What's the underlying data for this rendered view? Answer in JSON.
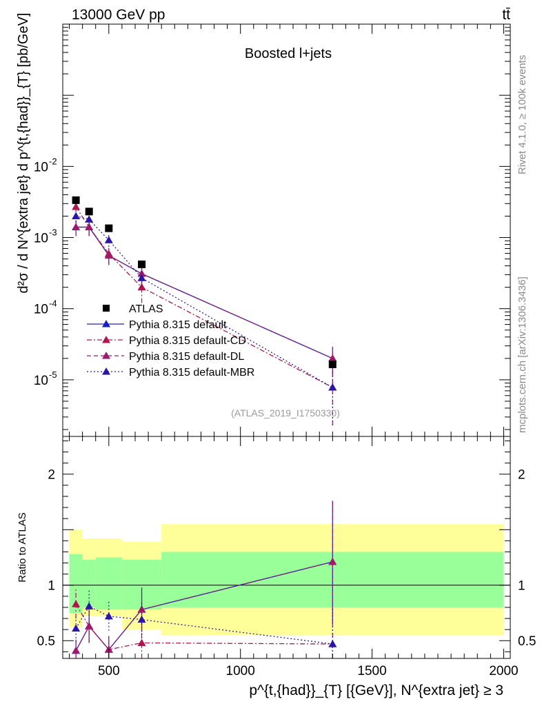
{
  "header": {
    "energy_label": "13000 GeV pp",
    "process_label": "tt̄",
    "side_rivet": "Rivet 4.1.0, ≥ 100k events",
    "side_mcplots": "mcplots.cern.ch [arXiv:1306.3436]"
  },
  "chart_data": [
    {
      "type": "line",
      "panel": "main",
      "title": "Boosted l+jets",
      "analysis_label": "(ATLAS_2019_I1750330)",
      "xlabel": "p^{t,{had}}_{T} [{GeV}], N^{extra jet} ≥ 3",
      "ylabel": "d²σ / d N^{extra jet} d p^{t,{had}}_{T} [pb/GeV]",
      "yscale": "log",
      "xlim": [
        325,
        2025
      ],
      "ylim": [
        1.6e-06,
        1.0
      ],
      "x_ticks": [
        500,
        1000,
        1500,
        2000
      ],
      "y_ticks": [
        {
          "value": 1e-05,
          "label": "10^-5"
        },
        {
          "value": 0.0001,
          "label": "10^-4"
        },
        {
          "value": 0.001,
          "label": "10^-3"
        },
        {
          "value": 0.01,
          "label": "10^-2"
        }
      ],
      "legend_position": "lower-left",
      "data": {
        "name": "ATLAS",
        "x": [
          375,
          425,
          500,
          625,
          1350
        ],
        "y": [
          0.00335,
          0.00232,
          0.00135,
          0.00042,
          1.65e-05
        ]
      },
      "series": [
        {
          "name": "Pythia 8.315 default",
          "color": "#1c1cc6",
          "dash": "solid",
          "x": [
            375,
            425,
            500,
            625,
            1350
          ],
          "y": [
            0.0014,
            0.0014,
            0.00056,
            0.00031,
            2e-05
          ],
          "err": [
            0.00035,
            0.00035,
            0.00015,
            9e-05,
            9e-06
          ]
        },
        {
          "name": "Pythia 8.315 default-CD",
          "color": "#b0164e",
          "dash": "dashdot",
          "x": [
            375,
            425,
            500,
            625,
            1350
          ],
          "y": [
            0.0027,
            0.0014,
            0.00059,
            0.0002,
            7.8e-06
          ],
          "err": [
            0.0004,
            0.00035,
            0.00016,
            8e-05,
            5.5e-06
          ]
        },
        {
          "name": "Pythia 8.315 default-DL",
          "color": "#a0196a",
          "dash": "dashed",
          "x": [
            375,
            425,
            500,
            625,
            1350
          ],
          "y": [
            0.0014,
            0.0014,
            0.00056,
            0.00031,
            2e-05
          ],
          "err": [
            0.00035,
            0.00035,
            0.00015,
            9e-05,
            9e-06
          ]
        },
        {
          "name": "Pythia 8.315 default-MBR",
          "color": "#2a16a8",
          "dash": "dotted",
          "x": [
            375,
            425,
            500,
            625,
            1350
          ],
          "y": [
            0.002,
            0.0018,
            0.00092,
            0.00027,
            7.8e-06
          ],
          "err": [
            0.00035,
            0.0003,
            0.00018,
            7e-05,
            5.5e-06
          ]
        }
      ]
    },
    {
      "type": "line",
      "panel": "ratio",
      "ylabel": "Ratio to ATLAS",
      "xlabel": "p^{t,{had}}_{T} [{GeV}], N^{extra jet} ≥ 3",
      "xlim": [
        325,
        2025
      ],
      "ylim": [
        0.34,
        2.34
      ],
      "x_ticks": [
        500,
        1000,
        1500,
        2000
      ],
      "y_ticks": [
        0.5,
        1,
        2
      ],
      "reference_line": 1.0,
      "bands": {
        "bins": [
          [
            350,
            400
          ],
          [
            400,
            450
          ],
          [
            450,
            550
          ],
          [
            550,
            700
          ],
          [
            700,
            2000
          ]
        ],
        "inner": [
          [
            0.75,
            1.28
          ],
          [
            0.8,
            1.23
          ],
          [
            0.78,
            1.25
          ],
          [
            0.78,
            1.23
          ],
          [
            0.8,
            1.3
          ]
        ],
        "outer": [
          [
            0.62,
            1.5
          ],
          [
            0.72,
            1.42
          ],
          [
            0.72,
            1.42
          ],
          [
            0.6,
            1.39
          ],
          [
            0.55,
            1.55
          ]
        ],
        "inner_color": "#99ff99",
        "outer_color": "#ffff99"
      },
      "series": [
        {
          "name": "Pythia 8.315 default",
          "color": "#1c1cc6",
          "dash": "solid",
          "x": [
            375,
            425,
            500,
            625,
            1350
          ],
          "y": [
            0.41,
            0.63,
            0.42,
            0.78,
            1.21
          ],
          "err": [
            0.1,
            0.15,
            0.12,
            0.2,
            0.55
          ]
        },
        {
          "name": "Pythia 8.315 default-CD",
          "color": "#b0164e",
          "dash": "dashdot",
          "x": [
            375,
            425,
            500,
            625,
            1350
          ],
          "y": [
            0.83,
            0.63,
            0.42,
            0.48,
            0.47
          ],
          "err": [
            0.13,
            0.15,
            0.12,
            0.18,
            0.33
          ]
        },
        {
          "name": "Pythia 8.315 default-DL",
          "color": "#a0196a",
          "dash": "dashed",
          "x": [
            375,
            425,
            500,
            625,
            1350
          ],
          "y": [
            0.41,
            0.63,
            0.42,
            0.78,
            1.21
          ],
          "err": [
            0.1,
            0.15,
            0.12,
            0.2,
            0.55
          ]
        },
        {
          "name": "Pythia 8.315 default-MBR",
          "color": "#2a16a8",
          "dash": "dotted",
          "x": [
            375,
            425,
            500,
            625,
            1350
          ],
          "y": [
            0.61,
            0.81,
            0.72,
            0.69,
            0.47
          ],
          "err": [
            0.12,
            0.15,
            0.13,
            0.17,
            0.33
          ]
        }
      ]
    }
  ]
}
